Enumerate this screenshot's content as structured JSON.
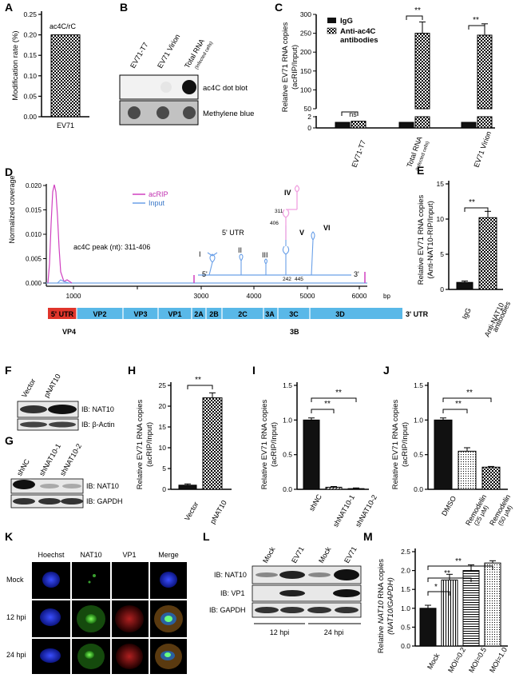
{
  "panel_letters": {
    "A": "A",
    "B": "B",
    "C": "C",
    "D": "D",
    "E": "E",
    "F": "F",
    "G": "G",
    "H": "H",
    "I": "I",
    "J": "J",
    "K": "K",
    "L": "L",
    "M": "M"
  },
  "panelA": {
    "ylabel": "Modification rate (%)",
    "series_label": "ac4C/rC",
    "category": "EV71",
    "ticks": [
      "0.00",
      "0.05",
      "0.10",
      "0.15",
      "0.20",
      "0.25"
    ]
  },
  "panelB": {
    "columns": [
      "EV71-T7",
      "EV71 Virion",
      "Total RNA"
    ],
    "total_rna_sub": "(Infected cells)",
    "row_labels": [
      "ac4C dot blot",
      "Methylene blue"
    ]
  },
  "panelC": {
    "ylabel1": "Relative EV71 RNA copies",
    "ylabel2": "(acRIP/Input)",
    "legend": [
      "IgG",
      "Anti-ac4C",
      "antibodies"
    ],
    "categories": [
      "EV71-T7",
      "Total RNA",
      "EV71 Virion"
    ],
    "cat2_sub": "(Infected cells)",
    "sig": [
      "ns",
      "**",
      "**"
    ],
    "ticks": [
      "0",
      "2",
      "50",
      "100",
      "150",
      "200",
      "250",
      "300"
    ]
  },
  "panelD": {
    "ylabel": "Normalized coverage",
    "legend": [
      "acRIP",
      "Input"
    ],
    "peak_label": "ac4C peak (nt): 311-406",
    "utr_label": "5' UTR",
    "xunit": "bp",
    "xticks": [
      "1000",
      "3000",
      "4000",
      "5000",
      "6000"
    ],
    "yticks": [
      "0.000",
      "0.005",
      "0.010",
      "0.015",
      "0.020"
    ],
    "loops": [
      "I",
      "II",
      "III",
      "IV",
      "V",
      "VI"
    ],
    "loop_nums": [
      "311",
      "406",
      "242",
      "445"
    ],
    "ends": [
      "5'",
      "3'"
    ],
    "genes": [
      "5' UTR",
      "VP2",
      "VP3",
      "VP1",
      "2A",
      "2B",
      "2C",
      "3A",
      "3C",
      "3D"
    ],
    "genome_end": "3' UTR",
    "sub_labels": [
      "VP4",
      "3B"
    ]
  },
  "panelE": {
    "ylabel1": "Relative EV71 RNA copies",
    "ylabel2": "(Anti-NAT10-RIP/Input)",
    "categories": [
      "IgG",
      "Anti-NAT10",
      "antibodies"
    ],
    "sig": "**",
    "ticks": [
      "0",
      "5",
      "10",
      "15"
    ]
  },
  "panelF": {
    "lanes": [
      "Vector",
      "pNAT10"
    ],
    "bands": [
      "IB: NAT10",
      "IB: β-Actin"
    ]
  },
  "panelG": {
    "lanes": [
      "shNC",
      "shNAT10-1",
      "shNAT10-2"
    ],
    "bands": [
      "IB: NAT10",
      "IB: GAPDH"
    ]
  },
  "panelH": {
    "ylabel1": "Relative EV71 RNA copies",
    "ylabel2": "(acRIP/Input)",
    "categories": [
      "Vector",
      "pNAT10"
    ],
    "sig": "**",
    "ticks": [
      "0",
      "5",
      "10",
      "15",
      "20",
      "25"
    ]
  },
  "panelI": {
    "ylabel1": "Relative EV71 RNA copies",
    "ylabel2": "(acRIP/Input)",
    "categories": [
      "shNC",
      "shNAT10-1",
      "shNAT10-2"
    ],
    "sig": [
      "**",
      "**"
    ],
    "ticks": [
      "0.0",
      "0.5",
      "1.0",
      "1.5"
    ]
  },
  "panelJ": {
    "ylabel1": "Relative EV71 RNA copies",
    "ylabel2": "(acRIP/Input)",
    "categories": [
      "DMSO",
      "Remodelin",
      "Remodelin"
    ],
    "concs": [
      "(25 μM)",
      "(50 μM)"
    ],
    "sig": [
      "**",
      "**"
    ],
    "ticks": [
      "0.0",
      "0.5",
      "1.0",
      "1.5"
    ]
  },
  "panelK": {
    "columns": [
      "Hoechst",
      "NAT10",
      "VP1",
      "Merge"
    ],
    "rows": [
      "Mock",
      "12 hpi",
      "24 hpi"
    ]
  },
  "panelL": {
    "lanes": [
      "Mock",
      "EV71",
      "Mock",
      "EV71"
    ],
    "bands": [
      "IB: NAT10",
      "IB: VP1",
      "IB: GAPDH"
    ],
    "times": [
      "12 hpi",
      "24 hpi"
    ]
  },
  "panelM": {
    "ylabel1": "Relative",
    "ylabel_italic": "NAT10",
    "ylabel_rest": "RNA copies",
    "ylabel2": "(NAT10/GAPDH)",
    "categories": [
      "Mock",
      "MOI=0.2",
      "MOI=0.5",
      "MOI=1.0"
    ],
    "sig": [
      "*",
      "**",
      "**"
    ],
    "ticks": [
      "0.0",
      "0.5",
      "1.0",
      "1.5",
      "2.0",
      "2.5"
    ]
  },
  "chart_data": [
    {
      "panel": "A",
      "type": "bar",
      "categories": [
        "EV71"
      ],
      "values": [
        0.2
      ],
      "ylim": [
        0,
        0.25
      ],
      "ylabel": "Modification rate (%)"
    },
    {
      "panel": "C",
      "type": "bar",
      "categories": [
        "EV71-T7",
        "Total RNA",
        "EV71 Virion"
      ],
      "series": [
        {
          "name": "IgG",
          "values": [
            1,
            1,
            1
          ]
        },
        {
          "name": "Anti-ac4C antibodies",
          "values": [
            1.2,
            250,
            245
          ]
        }
      ],
      "ylabel": "Relative EV71 RNA copies (acRIP/Input)"
    },
    {
      "panel": "D",
      "type": "line",
      "series": [
        {
          "name": "acRIP"
        },
        {
          "name": "Input"
        }
      ],
      "ylim": [
        0,
        0.02
      ],
      "xlabel": "bp",
      "ylabel": "Normalized coverage"
    },
    {
      "panel": "E",
      "type": "bar",
      "categories": [
        "IgG",
        "Anti-NAT10 antibodies"
      ],
      "values": [
        1,
        10.2
      ],
      "ylim": [
        0,
        15
      ]
    },
    {
      "panel": "H",
      "type": "bar",
      "categories": [
        "Vector",
        "pNAT10"
      ],
      "values": [
        1,
        22
      ],
      "ylim": [
        0,
        25
      ]
    },
    {
      "panel": "I",
      "type": "bar",
      "categories": [
        "shNC",
        "shNAT10-1",
        "shNAT10-2"
      ],
      "values": [
        1.0,
        0.03,
        0.01
      ],
      "ylim": [
        0,
        1.5
      ]
    },
    {
      "panel": "J",
      "type": "bar",
      "categories": [
        "DMSO",
        "Remodelin (25 μM)",
        "Remodelin (50 μM)"
      ],
      "values": [
        1.0,
        0.55,
        0.32
      ],
      "ylim": [
        0,
        1.5
      ]
    },
    {
      "panel": "M",
      "type": "bar",
      "categories": [
        "Mock",
        "MOI=0.2",
        "MOI=0.5",
        "MOI=1.0"
      ],
      "values": [
        1.0,
        1.75,
        2.0,
        2.2
      ],
      "ylim": [
        0,
        2.5
      ]
    }
  ]
}
